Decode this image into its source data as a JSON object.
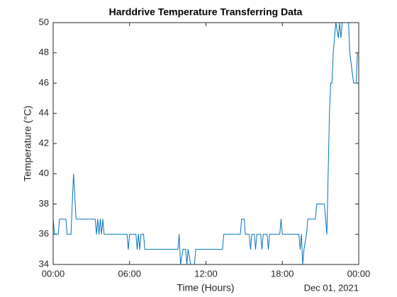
{
  "chart_data": {
    "type": "line",
    "title": "Harddrive Temperature Transferring Data",
    "xlabel": "Time (Hours)",
    "ylabel": "Temperature (°C)",
    "x_secondary_label": "Dec 01, 2021",
    "x": [
      0,
      0.1,
      0.4,
      0.5,
      1.0,
      1.1,
      1.4,
      1.6,
      1.8,
      3.3,
      3.4,
      3.5,
      3.6,
      3.7,
      3.8,
      3.9,
      4.0,
      5.8,
      5.9,
      6.0,
      6.5,
      6.6,
      6.7,
      6.8,
      6.9,
      7.1,
      7.2,
      9.8,
      9.9,
      10.0,
      10.2,
      10.4,
      10.5,
      10.6,
      10.8,
      11.1,
      11.2,
      13.3,
      13.4,
      14.7,
      14.8,
      15.0,
      15.1,
      15.4,
      15.5,
      15.6,
      15.8,
      15.9,
      16.0,
      16.3,
      16.4,
      16.5,
      16.8,
      16.9,
      17.0,
      17.8,
      17.9,
      18.0,
      19.3,
      19.4,
      19.5,
      19.6,
      19.7,
      19.9,
      20.0,
      20.6,
      20.7,
      21.3,
      21.4,
      21.5,
      21.6,
      21.7,
      21.8,
      21.9,
      22.0,
      22.2,
      22.4,
      22.5,
      22.6,
      22.7,
      23.2,
      23.3,
      23.6,
      23.8,
      23.9,
      24.0
    ],
    "series": [
      {
        "color": "#0072bd",
        "values": [
          37,
          36,
          36,
          37,
          37,
          36,
          36,
          40,
          37,
          37,
          36,
          37,
          36,
          37,
          36,
          37,
          36,
          36,
          35,
          36,
          36,
          35,
          36,
          35,
          36,
          36,
          35,
          35,
          36,
          34,
          35,
          35,
          34,
          35,
          34,
          34,
          35,
          35,
          36,
          36,
          37,
          37,
          36,
          36,
          35,
          36,
          36,
          35,
          36,
          36,
          35,
          36,
          36,
          35,
          36,
          36,
          37,
          36,
          36,
          35,
          36,
          34,
          35,
          36,
          37,
          37,
          38,
          38,
          37,
          36,
          40,
          44,
          46,
          46,
          48,
          50,
          49,
          50,
          49,
          50,
          50,
          48,
          46,
          46,
          48,
          48
        ]
      }
    ],
    "xlim": [
      0,
      24
    ],
    "xticks": [
      {
        "value": 0,
        "label": "00:00"
      },
      {
        "value": 6,
        "label": "06:00"
      },
      {
        "value": 12,
        "label": "12:00"
      },
      {
        "value": 18,
        "label": "18:00"
      },
      {
        "value": 24,
        "label": "00:00"
      }
    ],
    "ylim": [
      34,
      50
    ],
    "yticks": [
      34,
      36,
      38,
      40,
      42,
      44,
      46,
      48,
      50
    ],
    "grid": false
  }
}
